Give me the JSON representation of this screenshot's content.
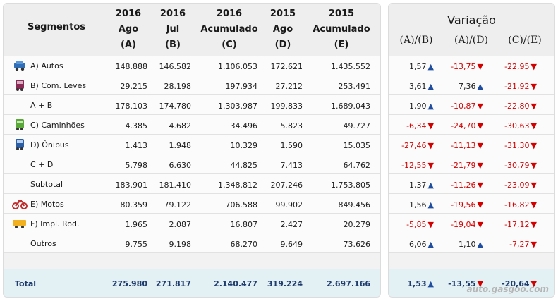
{
  "header": {
    "segment_label": "Segmentos",
    "columns": [
      {
        "line1": "2016",
        "line2": "Ago",
        "line3": "(A)"
      },
      {
        "line1": "2016",
        "line2": "Jul",
        "line3": "(B)"
      },
      {
        "line1": "2016",
        "line2": "Acumulado",
        "line3": "(C)"
      },
      {
        "line1": "2015",
        "line2": "Ago",
        "line3": "(D)"
      },
      {
        "line1": "2015",
        "line2": "Acumulado",
        "line3": "(E)"
      }
    ]
  },
  "variation": {
    "title": "Variação",
    "columns": [
      "(A)/(B)",
      "(A)/(D)",
      "(C)/(E)"
    ]
  },
  "rows": [
    {
      "label": "A) Autos",
      "icon": "car-icon",
      "values": [
        "148.888",
        "146.582",
        "1.106.053",
        "172.621",
        "1.435.552"
      ],
      "var": [
        {
          "v": "1,57",
          "dir": "up"
        },
        {
          "v": "-13,75",
          "dir": "down"
        },
        {
          "v": "-22,95",
          "dir": "down"
        }
      ]
    },
    {
      "label": "B) Com. Leves",
      "icon": "van-icon",
      "values": [
        "29.215",
        "28.198",
        "197.934",
        "27.212",
        "253.491"
      ],
      "var": [
        {
          "v": "3,61",
          "dir": "up"
        },
        {
          "v": "7,36",
          "dir": "up"
        },
        {
          "v": "-21,92",
          "dir": "down"
        }
      ]
    },
    {
      "label": "A + B",
      "icon": "",
      "values": [
        "178.103",
        "174.780",
        "1.303.987",
        "199.833",
        "1.689.043"
      ],
      "var": [
        {
          "v": "1,90",
          "dir": "up"
        },
        {
          "v": "-10,87",
          "dir": "down"
        },
        {
          "v": "-22,80",
          "dir": "down"
        }
      ]
    },
    {
      "label": "C) Caminhões",
      "icon": "truck-icon",
      "values": [
        "4.385",
        "4.682",
        "34.496",
        "5.823",
        "49.727"
      ],
      "var": [
        {
          "v": "-6,34",
          "dir": "down"
        },
        {
          "v": "-24,70",
          "dir": "down"
        },
        {
          "v": "-30,63",
          "dir": "down"
        }
      ]
    },
    {
      "label": "D) Ônibus",
      "icon": "bus-icon",
      "values": [
        "1.413",
        "1.948",
        "10.329",
        "1.590",
        "15.035"
      ],
      "var": [
        {
          "v": "-27,46",
          "dir": "down"
        },
        {
          "v": "-11,13",
          "dir": "down"
        },
        {
          "v": "-31,30",
          "dir": "down"
        }
      ]
    },
    {
      "label": "C + D",
      "icon": "",
      "values": [
        "5.798",
        "6.630",
        "44.825",
        "7.413",
        "64.762"
      ],
      "var": [
        {
          "v": "-12,55",
          "dir": "down"
        },
        {
          "v": "-21,79",
          "dir": "down"
        },
        {
          "v": "-30,79",
          "dir": "down"
        }
      ]
    },
    {
      "label": "Subtotal",
      "icon": "",
      "values": [
        "183.901",
        "181.410",
        "1.348.812",
        "207.246",
        "1.753.805"
      ],
      "var": [
        {
          "v": "1,37",
          "dir": "up"
        },
        {
          "v": "-11,26",
          "dir": "down"
        },
        {
          "v": "-23,09",
          "dir": "down"
        }
      ]
    },
    {
      "label": "E) Motos",
      "icon": "motorcycle-icon",
      "values": [
        "80.359",
        "79.122",
        "706.588",
        "99.902",
        "849.456"
      ],
      "var": [
        {
          "v": "1,56",
          "dir": "up"
        },
        {
          "v": "-19,56",
          "dir": "down"
        },
        {
          "v": "-16,82",
          "dir": "down"
        }
      ]
    },
    {
      "label": "F) Impl. Rod.",
      "icon": "trailer-icon",
      "values": [
        "1.965",
        "2.087",
        "16.807",
        "2.427",
        "20.279"
      ],
      "var": [
        {
          "v": "-5,85",
          "dir": "down"
        },
        {
          "v": "-19,04",
          "dir": "down"
        },
        {
          "v": "-17,12",
          "dir": "down"
        }
      ]
    },
    {
      "label": "Outros",
      "icon": "",
      "values": [
        "9.755",
        "9.198",
        "68.270",
        "9.649",
        "73.626"
      ],
      "var": [
        {
          "v": "6,06",
          "dir": "up"
        },
        {
          "v": "1,10",
          "dir": "up"
        },
        {
          "v": "-7,27",
          "dir": "down"
        }
      ]
    }
  ],
  "total": {
    "label": "Total",
    "values": [
      "275.980",
      "271.817",
      "2.140.477",
      "319.224",
      "2.697.166"
    ],
    "var": [
      {
        "v": "1,53",
        "dir": "up"
      },
      {
        "v": "-13,55",
        "dir": "down"
      },
      {
        "v": "-20,64",
        "dir": "down"
      }
    ]
  },
  "watermark": "auto.gasgoo.com",
  "colors": {
    "positive_arrow": "#1f4ea0",
    "negative": "#d40000",
    "total_text": "#1f3c6e",
    "total_bg": "#e4f1f4"
  }
}
